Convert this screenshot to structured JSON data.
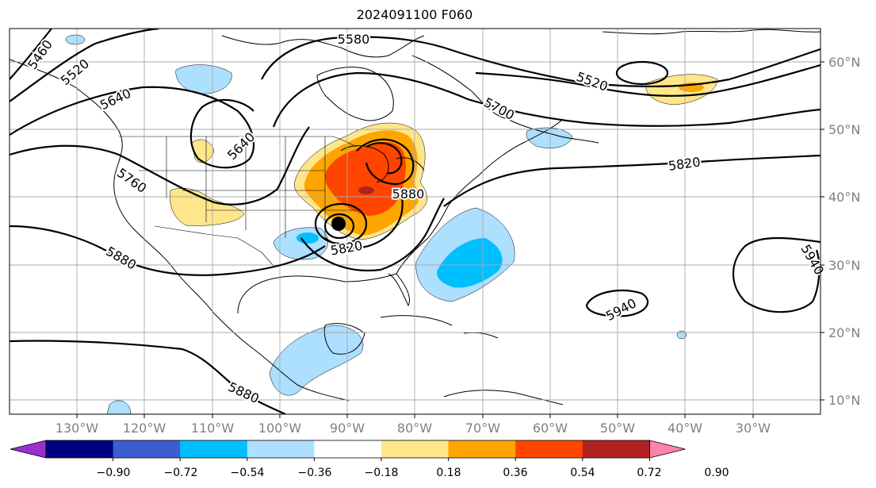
{
  "title": "2024091100 F060",
  "map": {
    "lon_labels": [
      "130°W",
      "120°W",
      "110°W",
      "100°W",
      "90°W",
      "80°W",
      "70°W",
      "60°W",
      "50°W",
      "40°W",
      "30°W"
    ],
    "lat_labels": [
      "60°N",
      "50°N",
      "40°N",
      "30°N",
      "20°N",
      "10°N"
    ],
    "contour_labels": [
      "5460",
      "5520",
      "5640",
      "5580",
      "5520",
      "5700",
      "5640",
      "5760",
      "5820",
      "5880",
      "5880",
      "5820",
      "5940",
      "5940",
      "5880"
    ],
    "marker": "storm-center-dot"
  },
  "colorbar": {
    "colors": [
      "#9b30d0",
      "#000080",
      "#3a5fcd",
      "#00bfff",
      "#addfff",
      "#ffffff",
      "#ffe68a",
      "#ffa500",
      "#ff4500",
      "#b22222",
      "#ff82ab"
    ],
    "ticks": [
      "−0.90",
      "−0.72",
      "−0.54",
      "−0.36",
      "−0.18",
      "0.18",
      "0.36",
      "0.54",
      "0.72",
      "0.90"
    ]
  }
}
